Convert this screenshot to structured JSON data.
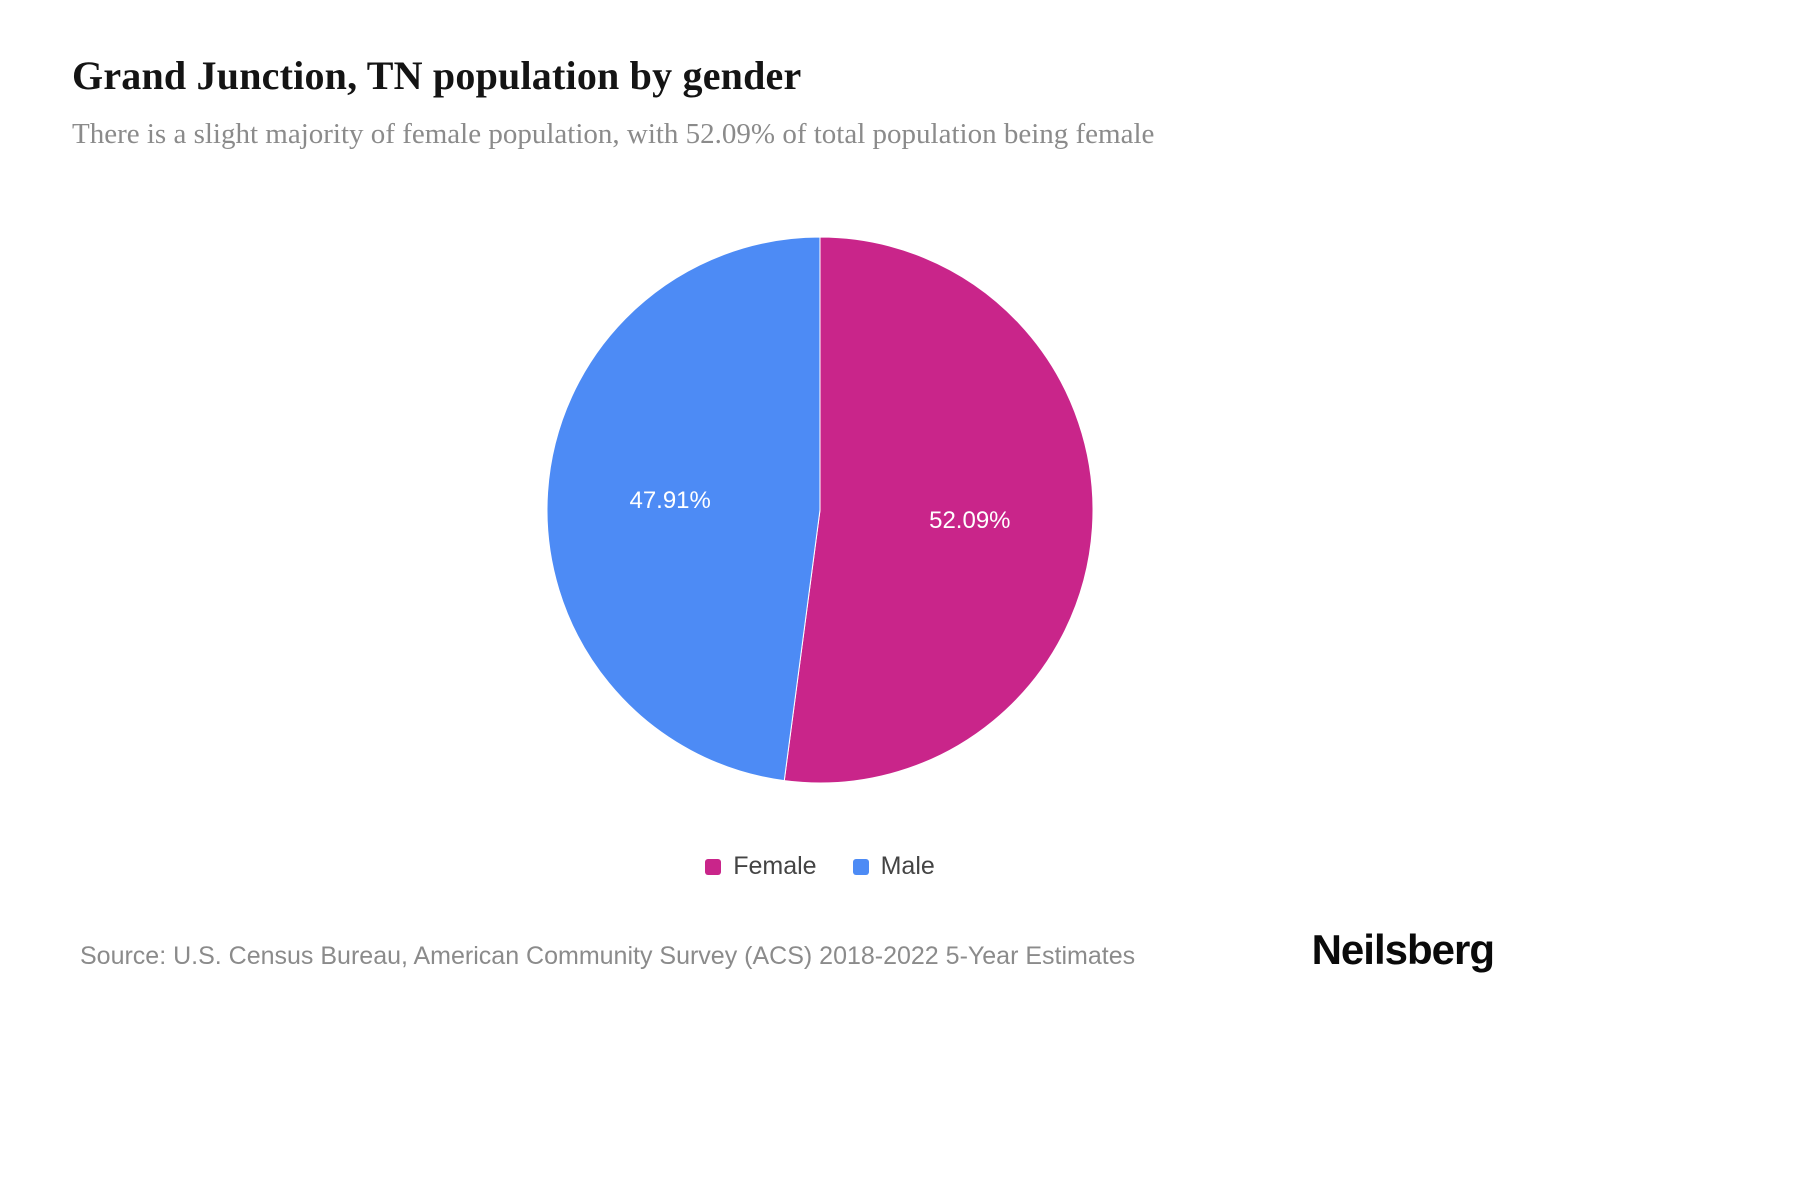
{
  "page": {
    "title": "Grand Junction, TN population by gender",
    "subtitle": "There is a slight majority of female population, with 52.09% of total population being female",
    "source": "Source: U.S. Census Bureau, American Community Survey (ACS) 2018-2022 5-Year Estimates",
    "brand": "Neilsberg"
  },
  "chart_data": {
    "type": "pie",
    "title": "Grand Junction, TN population by gender",
    "legend_position": "bottom",
    "start_angle_deg": 0,
    "direction": "clockwise",
    "slices": [
      {
        "label": "Female",
        "value": 52.09,
        "display": "52.09%",
        "color": "#c9258a"
      },
      {
        "label": "Male",
        "value": 47.91,
        "display": "47.91%",
        "color": "#4d8bf5"
      }
    ]
  }
}
